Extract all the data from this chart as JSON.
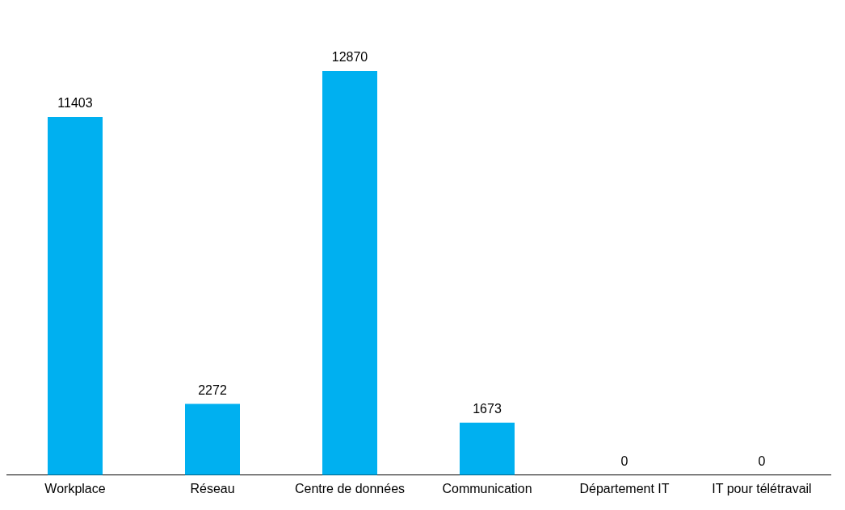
{
  "chart_data": {
    "type": "bar",
    "categories": [
      "Workplace",
      "Réseau",
      "Centre de données",
      "Communication",
      "Département IT",
      "IT pour télétravail"
    ],
    "values": [
      11403,
      2272,
      12870,
      1673,
      0,
      0
    ],
    "color": "#00b0f0",
    "data_labels": true,
    "grid": false,
    "legend": false
  }
}
